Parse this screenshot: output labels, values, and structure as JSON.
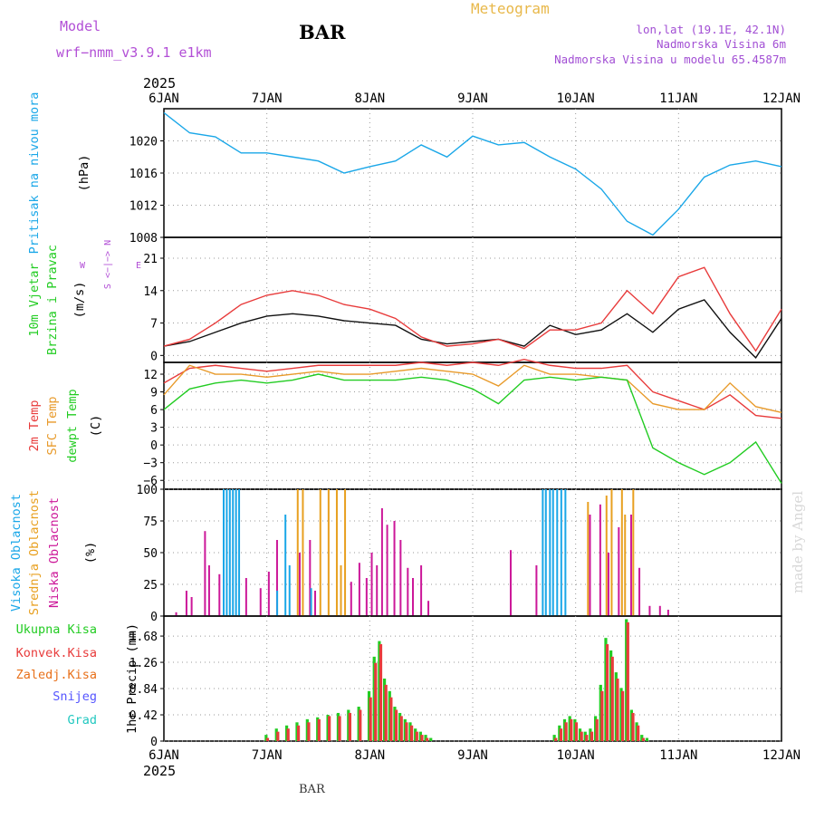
{
  "header": {
    "model_label": "Model",
    "model_name": "wrf−nmm_v3.9.1  e1km",
    "station": "BAR",
    "product": "Meteogram",
    "coords": "lon,lat (19.1E, 42.1N)",
    "altitude": "Nadmorska Visina 6m",
    "model_altitude": "Nadmorska Visina u modelu 65.4587m",
    "footer_station": "BAR",
    "credit": "made by Angel",
    "colors": {
      "model": "#b24fd6",
      "product": "#e8b84a",
      "coords": "#a24fd4"
    }
  },
  "time_axis": {
    "year": "2025",
    "ticks": [
      "6JAN",
      "7JAN",
      "8JAN",
      "9JAN",
      "10JAN",
      "11JAN",
      "12JAN"
    ]
  },
  "chart_data": [
    {
      "type": "line",
      "title": "",
      "ylabel": [
        "Pritisak na nivou mora",
        "(hPa)"
      ],
      "ylabel_colors": [
        "#1aa7e8",
        "#000000"
      ],
      "ylim": [
        1008,
        1024
      ],
      "yticks": [
        "1008",
        "1012",
        "1016",
        "1020"
      ],
      "ytick_values": [
        1008,
        1012,
        1016,
        1020
      ],
      "grid": true,
      "x": [
        0,
        0.25,
        0.5,
        0.75,
        1,
        1.25,
        1.5,
        1.75,
        2,
        2.25,
        2.5,
        2.75,
        3,
        3.25,
        3.5,
        3.75,
        4,
        4.25,
        4.5,
        4.75,
        5,
        5.25,
        5.5,
        5.75,
        6
      ],
      "series": [
        {
          "color": "#1aa7e8",
          "values": [
            1023.5,
            1021,
            1020.5,
            1018.5,
            1018.5,
            1018,
            1017.5,
            1016,
            1016.8,
            1017.5,
            1019.5,
            1018,
            1020.6,
            1019.5,
            1019.8,
            1018,
            1016.5,
            1014,
            1010,
            1008.3,
            1011.5,
            1015.5,
            1017,
            1017.5,
            1016.8
          ]
        }
      ]
    },
    {
      "type": "line",
      "title": "",
      "ylabel": [
        "10m Vjetar",
        "Brzina i Pravac",
        "(m/s)"
      ],
      "ylabel_colors": [
        "#22cc22",
        "#22cc22",
        "#000000"
      ],
      "direction_key": [
        "N",
        "S",
        "W",
        "E",
        "<−|−>"
      ],
      "ylim": [
        -1.5,
        25.5
      ],
      "yticks": [
        "0",
        "7",
        "14",
        "21"
      ],
      "ytick_values": [
        0,
        7,
        14,
        21
      ],
      "grid": true,
      "x": [
        0,
        0.25,
        0.5,
        0.75,
        1,
        1.25,
        1.5,
        1.75,
        2,
        2.25,
        2.5,
        2.75,
        3,
        3.25,
        3.5,
        3.75,
        4,
        4.25,
        4.5,
        4.75,
        5,
        5.25,
        5.5,
        5.75,
        6
      ],
      "series": [
        {
          "color": "#111111",
          "values": [
            2,
            3,
            5,
            7,
            8.5,
            9,
            8.5,
            7.5,
            7,
            6.5,
            3.5,
            2.5,
            3,
            3.5,
            2,
            6.5,
            4.5,
            5.5,
            9,
            5,
            10,
            12,
            5,
            -0.5,
            8
          ]
        },
        {
          "color": "#e83b3b",
          "values": [
            2,
            3.5,
            7,
            11,
            13,
            14,
            13,
            11,
            10,
            8,
            4,
            2,
            2.5,
            3.5,
            1.5,
            5.5,
            5.5,
            7,
            14,
            9,
            17,
            19,
            9,
            1,
            10
          ]
        }
      ]
    },
    {
      "type": "line",
      "title": "",
      "ylabel": [
        "2m Temp",
        "SFC Temp",
        "dewpt Temp",
        "(C)"
      ],
      "ylabel_colors": [
        "#e83b3b",
        "#e89a2a",
        "#22cc22",
        "#000000"
      ],
      "ylim": [
        -7.5,
        14
      ],
      "yticks": [
        "−6",
        "−3",
        "0",
        "3",
        "6",
        "9",
        "12"
      ],
      "ytick_values": [
        -6,
        -3,
        0,
        3,
        6,
        9,
        12
      ],
      "grid": true,
      "x": [
        0,
        0.25,
        0.5,
        0.75,
        1,
        1.25,
        1.5,
        1.75,
        2,
        2.25,
        2.5,
        2.75,
        3,
        3.25,
        3.5,
        3.75,
        4,
        4.25,
        4.5,
        4.75,
        5,
        5.25,
        5.5,
        5.75,
        6
      ],
      "series": [
        {
          "name": "2m Temp",
          "color": "#e83b3b",
          "values": [
            10.5,
            13,
            13.5,
            13,
            12.5,
            13,
            13.5,
            13.5,
            13.5,
            13.5,
            14,
            13.5,
            14,
            13.5,
            14.5,
            13.5,
            13,
            13,
            13.5,
            9,
            7.5,
            6,
            8.5,
            5,
            4.5
          ]
        },
        {
          "name": "SFC Temp",
          "color": "#e89a2a",
          "values": [
            8.5,
            13.5,
            12,
            12,
            11.5,
            12,
            12.5,
            12,
            12,
            12.5,
            13,
            12.5,
            12,
            10,
            13.5,
            12,
            12,
            11.5,
            11,
            7,
            6,
            6,
            10.5,
            6.5,
            5.5
          ]
        },
        {
          "name": "dewpt Temp",
          "color": "#22cc22",
          "values": [
            6,
            9.5,
            10.5,
            11,
            10.5,
            11,
            12,
            11,
            11,
            11,
            11.5,
            11,
            9.5,
            7,
            11,
            11.5,
            11,
            11.5,
            11,
            -0.5,
            -3,
            -5,
            -3,
            0.5,
            -6.5
          ]
        }
      ]
    },
    {
      "type": "bar",
      "title": "",
      "ylabel": [
        "Visoka Oblacnost",
        "Srednja Oblacnost",
        "Niska Oblacnost",
        "(%)"
      ],
      "ylabel_colors": [
        "#1aa7e8",
        "#e8a020",
        "#cc1899",
        "#000000"
      ],
      "ylim": [
        0,
        100
      ],
      "yticks": [
        "0",
        "25",
        "50",
        "75",
        "100"
      ],
      "ytick_values": [
        0,
        25,
        50,
        75,
        100
      ],
      "grid": true,
      "x": [
        0.1,
        0.2,
        0.25,
        0.38,
        0.42,
        0.52,
        0.57,
        0.6,
        0.63,
        0.66,
        0.69,
        0.72,
        0.75,
        0.78,
        0.92,
        1.0,
        1.08,
        1.12,
        1.2,
        1.24,
        1.3,
        1.35,
        1.4,
        1.45,
        1.52,
        1.6,
        1.68,
        1.72,
        1.76,
        1.8,
        1.88,
        1.95,
        2.0,
        2.05,
        2.1,
        2.15,
        2.22,
        2.28,
        2.35,
        2.4,
        2.48,
        2.55,
        3.35,
        3.6,
        3.7,
        3.73,
        3.77,
        3.8,
        3.84,
        3.88,
        3.92,
        4.12,
        4.22,
        4.3,
        4.35,
        4.4,
        4.45,
        4.48,
        4.52,
        4.56,
        4.6,
        4.7,
        4.8,
        4.88
      ],
      "series": [
        {
          "name": "Visoka Oblacnost",
          "color": "#1aa7e8",
          "values": [
            0,
            0,
            0,
            0,
            0,
            0,
            0,
            100,
            100,
            100,
            100,
            100,
            100,
            0,
            0,
            0,
            0,
            20,
            80,
            40,
            0,
            0,
            0,
            22,
            0,
            0,
            0,
            0,
            0,
            0,
            0,
            0,
            0,
            0,
            0,
            0,
            0,
            0,
            0,
            0,
            0,
            0,
            0,
            0,
            100,
            100,
            100,
            100,
            100,
            100,
            100,
            0,
            0,
            0,
            0,
            0,
            0,
            0,
            0,
            0,
            0,
            0,
            0,
            0
          ]
        },
        {
          "name": "Srednja Oblacnost",
          "color": "#e8a020",
          "values": [
            0,
            0,
            0,
            0,
            0,
            0,
            0,
            0,
            0,
            0,
            0,
            0,
            0,
            0,
            0,
            0,
            0,
            0,
            0,
            0,
            100,
            100,
            0,
            0,
            100,
            100,
            100,
            40,
            100,
            0,
            0,
            0,
            0,
            0,
            0,
            0,
            0,
            0,
            0,
            0,
            0,
            0,
            0,
            0,
            0,
            0,
            0,
            0,
            0,
            0,
            0,
            90,
            0,
            95,
            100,
            0,
            100,
            80,
            0,
            100,
            0,
            0,
            0,
            0
          ]
        },
        {
          "name": "Niska Oblacnost",
          "color": "#cc1899",
          "values": [
            3,
            20,
            15,
            67,
            40,
            33,
            0,
            0,
            0,
            0,
            0,
            0,
            0,
            30,
            22,
            35,
            60,
            0,
            0,
            0,
            50,
            0,
            60,
            20,
            0,
            0,
            0,
            0,
            0,
            27,
            42,
            30,
            50,
            40,
            85,
            72,
            75,
            60,
            38,
            30,
            40,
            12,
            52,
            40,
            0,
            0,
            0,
            0,
            0,
            0,
            0,
            80,
            88,
            50,
            0,
            70,
            0,
            0,
            80,
            0,
            38,
            8,
            8,
            5
          ]
        }
      ]
    },
    {
      "type": "bar",
      "title": "",
      "ylabel": [
        "1hr Precip (mm)"
      ],
      "ylabel_colors": [
        "#000000"
      ],
      "legend": [
        {
          "label": "Ukupna Kisa",
          "color": "#22cc22"
        },
        {
          "label": "Konvek.Kisa",
          "color": "#e83b3b"
        },
        {
          "label": "Zaledj.Kisa",
          "color": "#e8701a"
        },
        {
          "label": "Snijeg",
          "color": "#5555ff"
        },
        {
          "label": "Grad",
          "color": "#22c8c0"
        }
      ],
      "ylim": [
        0,
        2.0
      ],
      "yticks": [
        "0",
        "0.42",
        "0.84",
        "1.26",
        "1.68"
      ],
      "ytick_values": [
        0,
        0.42,
        0.84,
        1.26,
        1.68
      ],
      "grid": true,
      "x": [
        1.0,
        1.1,
        1.2,
        1.3,
        1.4,
        1.5,
        1.6,
        1.7,
        1.8,
        1.9,
        2.0,
        2.05,
        2.1,
        2.15,
        2.2,
        2.25,
        2.3,
        2.35,
        2.4,
        2.45,
        2.5,
        2.55,
        2.6,
        3.8,
        3.85,
        3.9,
        3.95,
        4.0,
        4.05,
        4.1,
        4.15,
        4.2,
        4.25,
        4.3,
        4.35,
        4.4,
        4.45,
        4.5,
        4.55,
        4.6,
        4.65,
        4.7
      ],
      "series": [
        {
          "name": "Ukupna Kisa",
          "color": "#22cc22",
          "values": [
            0.1,
            0.2,
            0.25,
            0.3,
            0.35,
            0.38,
            0.42,
            0.45,
            0.5,
            0.55,
            0.8,
            1.35,
            1.6,
            1.0,
            0.8,
            0.55,
            0.45,
            0.35,
            0.3,
            0.2,
            0.15,
            0.1,
            0.05,
            0.1,
            0.25,
            0.35,
            0.4,
            0.35,
            0.2,
            0.15,
            0.2,
            0.4,
            0.9,
            1.65,
            1.45,
            1.1,
            0.85,
            1.95,
            0.5,
            0.3,
            0.1,
            0.05
          ]
        },
        {
          "name": "Konvek.Kisa",
          "color": "#e83b3b",
          "values": [
            0.05,
            0.15,
            0.2,
            0.25,
            0.3,
            0.35,
            0.4,
            0.4,
            0.45,
            0.5,
            0.7,
            1.25,
            1.55,
            0.9,
            0.7,
            0.5,
            0.4,
            0.3,
            0.25,
            0.15,
            0.1,
            0.05,
            0.0,
            0.05,
            0.2,
            0.3,
            0.35,
            0.3,
            0.15,
            0.1,
            0.15,
            0.35,
            0.8,
            1.55,
            1.35,
            1.0,
            0.8,
            1.9,
            0.45,
            0.25,
            0.05,
            0.0
          ]
        }
      ]
    }
  ]
}
